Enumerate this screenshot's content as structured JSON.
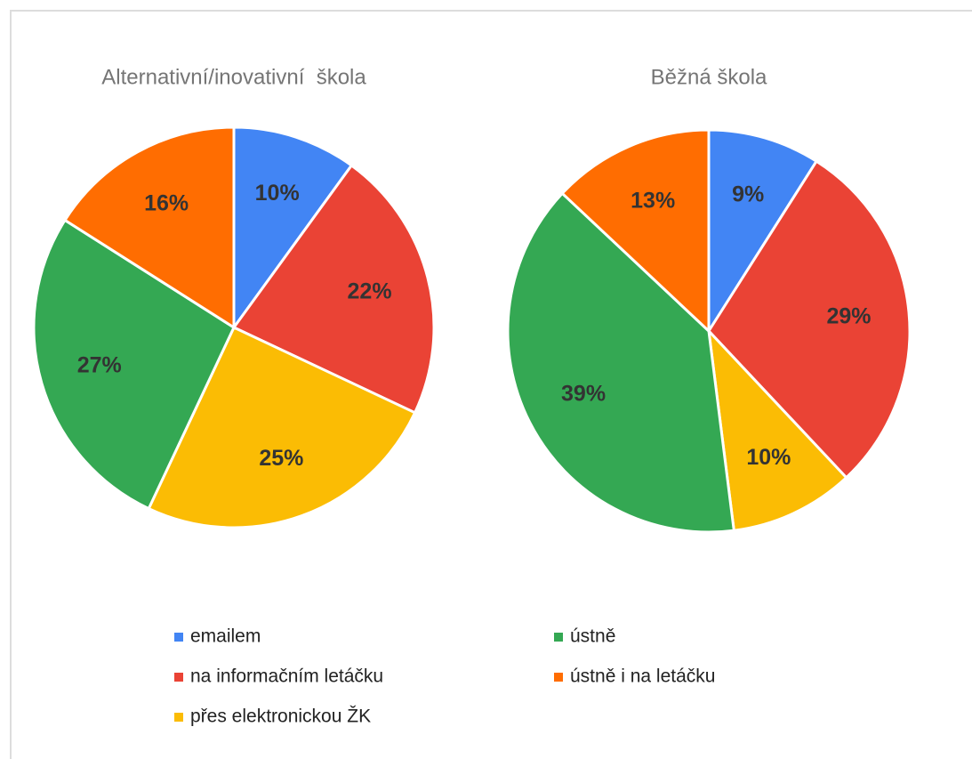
{
  "chart_data": [
    {
      "type": "pie",
      "title": "Alternativní/inovativní  škola",
      "categories": [
        "emailem",
        "na informačním letáčku",
        "přes elektronickou ŽK",
        "ústně",
        "ústně i na letáčku"
      ],
      "values": [
        10,
        22,
        25,
        27,
        16
      ],
      "value_labels": [
        "10%",
        "22%",
        "25%",
        "27%",
        "16%"
      ],
      "colors": [
        "#4285f4",
        "#ea4335",
        "#fbbc04",
        "#34a853",
        "#ff6d01"
      ]
    },
    {
      "type": "pie",
      "title": "Běžná škola",
      "categories": [
        "emailem",
        "na informačním letáčku",
        "přes elektronickou ŽK",
        "ústně",
        "ústně i na letáčku"
      ],
      "values": [
        9,
        29,
        10,
        39,
        13
      ],
      "value_labels": [
        "9%",
        "29%",
        "10%",
        "39%",
        "13%"
      ],
      "colors": [
        "#4285f4",
        "#ea4335",
        "#fbbc04",
        "#34a853",
        "#ff6d01"
      ]
    }
  ]
}
